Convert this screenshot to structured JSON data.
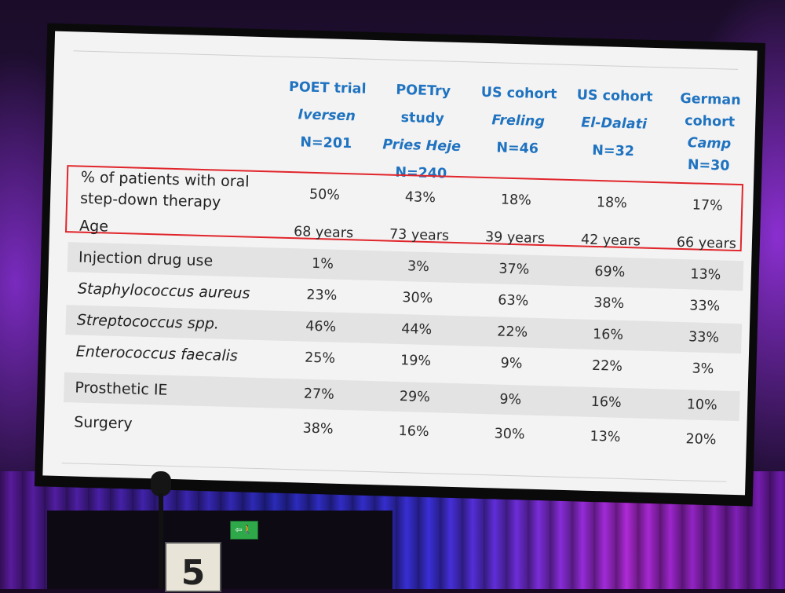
{
  "table": {
    "columns": [
      {
        "name": "POET trial",
        "author": "Iversen",
        "n": "N=201"
      },
      {
        "name": "POETry study",
        "author": "Pries Heje",
        "n": "N=240"
      },
      {
        "name": "US cohort",
        "author": "Freling",
        "n": "N=46"
      },
      {
        "name": "US cohort",
        "author": "El-Dalati",
        "n": "N=32"
      },
      {
        "name_line1": "German",
        "name_line2": "cohort",
        "author": "Camp",
        "n": "N=30"
      }
    ],
    "rows": [
      {
        "label_line1": "% of patients with oral",
        "label_line2": "step-down therapy",
        "values": [
          "50%",
          "43%",
          "18%",
          "18%",
          "17%"
        ]
      },
      {
        "label": "Age",
        "values": [
          "68 years",
          "73 years",
          "39 years",
          "42 years",
          "66 years"
        ]
      },
      {
        "label": "Injection drug use",
        "values": [
          "1%",
          "3%",
          "37%",
          "69%",
          "13%"
        ]
      },
      {
        "label": "Staphylococcus aureus",
        "values": [
          "23%",
          "30%",
          "63%",
          "38%",
          "33%"
        ]
      },
      {
        "label": "Streptococcus spp.",
        "values": [
          "46%",
          "44%",
          "22%",
          "16%",
          "33%"
        ]
      },
      {
        "label": "Enterococcus faecalis",
        "values": [
          "25%",
          "19%",
          "9%",
          "22%",
          "3%"
        ]
      },
      {
        "label": "Prosthetic IE",
        "values": [
          "27%",
          "29%",
          "9%",
          "16%",
          "10%"
        ]
      },
      {
        "label": "Surgery",
        "values": [
          "38%",
          "16%",
          "30%",
          "13%",
          "20%"
        ]
      }
    ]
  },
  "stage": {
    "exit_sign": "⇦🚶",
    "stand_number": "5"
  },
  "colors": {
    "header_text": "#1f73c0",
    "highlight_border": "#e0252b",
    "row_shade": "#e3e3e3"
  }
}
